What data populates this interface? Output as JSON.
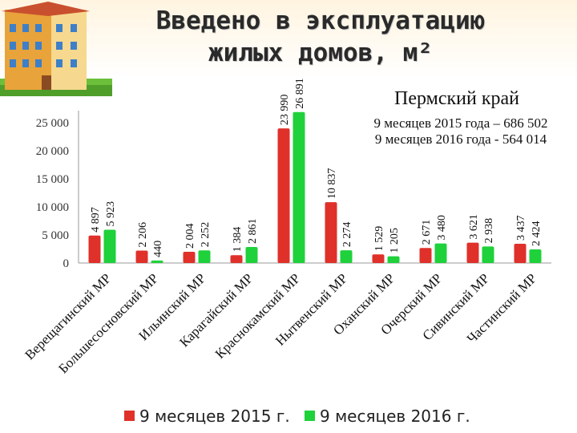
{
  "header": {
    "title": "Введено в эксплуатацию жилых домов, м²"
  },
  "region_title": "Пермский край",
  "totals": [
    "9 месяцев 2015 года – 686 502",
    "9 месяцев 2016 года - 564 014"
  ],
  "colors": {
    "series_2015": "#e0302a",
    "series_2016": "#1fd13b",
    "axis": "#999999"
  },
  "chart_data": {
    "type": "bar",
    "categories": [
      "Верещагинский МР",
      "Большесосновский МР",
      "Ильинский МР",
      "Карагайский МР",
      "Краснокамский МР",
      "Нытвенский МР",
      "Оханский МР",
      "Очерский МР",
      "Сивинский МР",
      "Частинский МР"
    ],
    "series": [
      {
        "name": "9 месяцев 2015 г.",
        "values": [
          4897,
          2206,
          2004,
          1384,
          23990,
          10837,
          1529,
          2671,
          3621,
          3437
        ],
        "labels": [
          "4 897",
          "2 206",
          "2 004",
          "1 384",
          "23 990",
          "10 837",
          "1 529",
          "2 671",
          "3 621",
          "3 437"
        ]
      },
      {
        "name": "9 месяцев 2016 г.",
        "values": [
          5923,
          440,
          2252,
          2861,
          26891,
          2274,
          1205,
          3480,
          2938,
          2424
        ],
        "labels": [
          "5 923",
          "440",
          "2 252",
          "2 861",
          "26 891",
          "2 274",
          "1 205",
          "3 480",
          "2 938",
          "2 424"
        ]
      }
    ],
    "yticks": [
      0,
      5000,
      10000,
      15000,
      20000,
      25000
    ],
    "ytick_labels": [
      "0",
      "5 000",
      "10 000",
      "15 000",
      "20 000",
      "25 000"
    ],
    "ylim": [
      0,
      25000
    ],
    "grid": false,
    "legend": "bottom"
  }
}
